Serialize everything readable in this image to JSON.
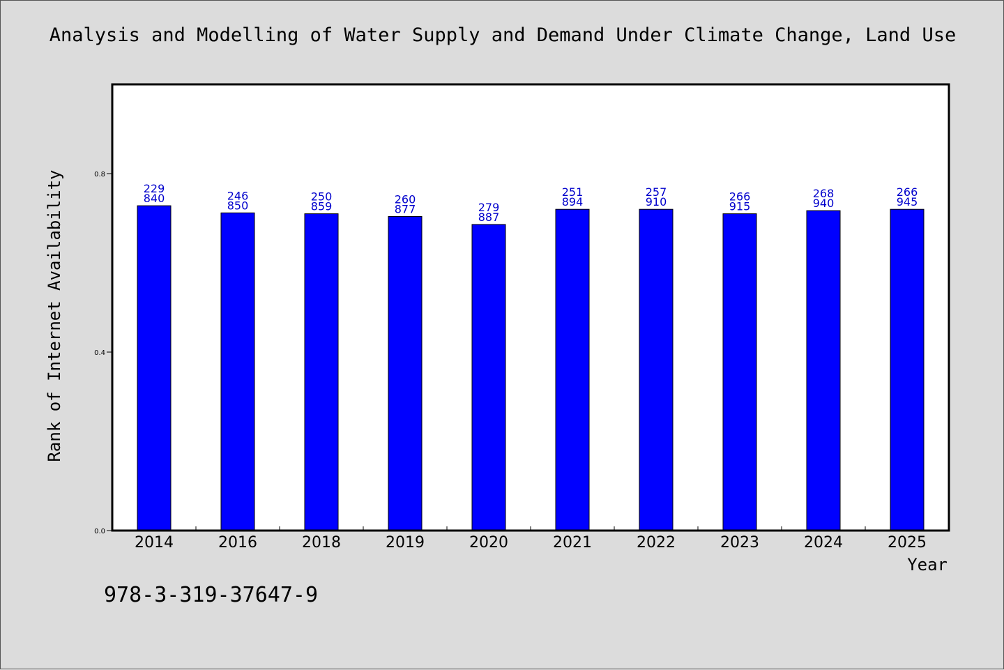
{
  "chart_data": {
    "type": "bar",
    "title": "Analysis and Modelling of Water Supply and Demand Under Climate Change, Land Use",
    "xlabel": "Year",
    "ylabel": "Rank of Internet Availability",
    "categories": [
      "2014",
      "2016",
      "2018",
      "2019",
      "2020",
      "2021",
      "2022",
      "2023",
      "2024",
      "2025"
    ],
    "values": [
      0.728,
      0.712,
      0.71,
      0.704,
      0.686,
      0.72,
      0.72,
      0.71,
      0.717,
      0.72
    ],
    "bar_labels": [
      [
        "229",
        "840"
      ],
      [
        "246",
        "850"
      ],
      [
        "250",
        "859"
      ],
      [
        "260",
        "877"
      ],
      [
        "279",
        "887"
      ],
      [
        "251",
        "894"
      ],
      [
        "257",
        "910"
      ],
      [
        "266",
        "915"
      ],
      [
        "268",
        "940"
      ],
      [
        "266",
        "945"
      ]
    ],
    "ylim": [
      0.0,
      1.0
    ],
    "yticks": [
      "0.0",
      "0.4",
      "0.8"
    ],
    "grid": false,
    "legend": "none",
    "bar_color": "#0000ff",
    "label_color": "#0000cc"
  },
  "footer": {
    "identifier": "978-3-319-37647-9"
  }
}
